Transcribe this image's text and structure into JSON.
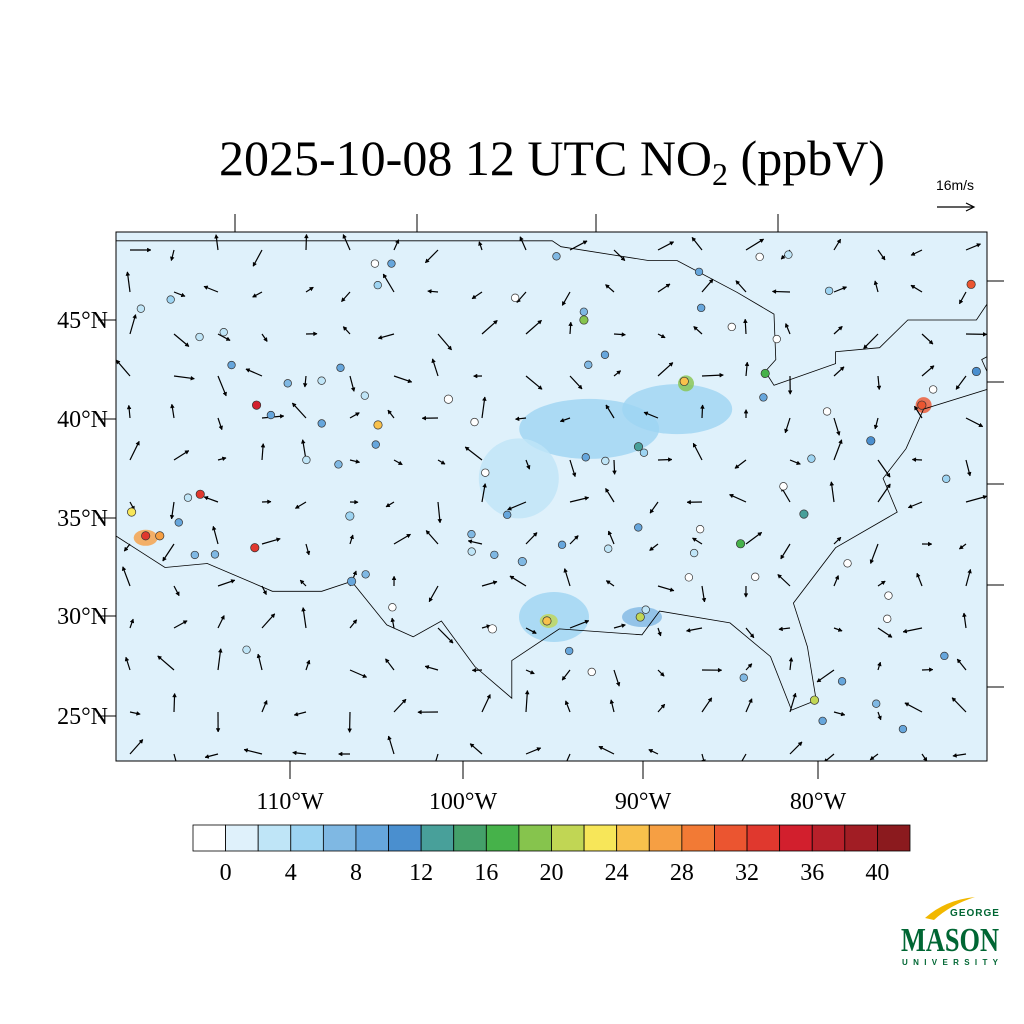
{
  "title": {
    "main": "2025-10-08 12 UTC NO",
    "subscript": "2",
    "unit": " (ppbV)"
  },
  "wind_reference": "16m/s",
  "latitude_labels": [
    "45°N",
    "40°N",
    "35°N",
    "30°N",
    "25°N"
  ],
  "longitude_labels": [
    "110°W",
    "100°W",
    "90°W",
    "80°W"
  ],
  "colorbar": {
    "labels": [
      0,
      4,
      8,
      12,
      16,
      20,
      24,
      28,
      32,
      36,
      40
    ],
    "colors": [
      "#ffffff",
      "#dff1fb",
      "#bfe5f7",
      "#9dd4f2",
      "#7fb8e3",
      "#66a6dc",
      "#4a8fcf",
      "#48a09a",
      "#44a06a",
      "#46b24a",
      "#86c44d",
      "#c1d654",
      "#f7e659",
      "#f8c14c",
      "#f69f43",
      "#f27a35",
      "#eb5530",
      "#e0382e",
      "#d21f2d",
      "#b7202a",
      "#a11d24",
      "#8b1a1e"
    ]
  },
  "logo": {
    "top": "GEORGE",
    "main": "MASON",
    "bottom": "UNIVERSITY"
  }
}
